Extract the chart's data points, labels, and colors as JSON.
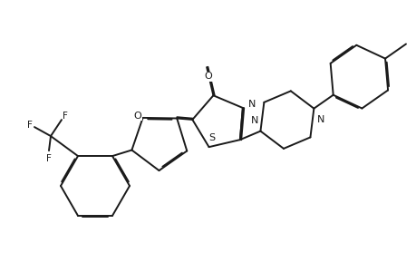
{
  "background": "#ffffff",
  "line_color": "#1a1a1a",
  "line_width": 1.4,
  "dbo": 0.013,
  "figsize": [
    4.6,
    3.0
  ],
  "dpi": 100,
  "xlim": [
    0,
    4.6
  ],
  "ylim": [
    0,
    3.0
  ]
}
